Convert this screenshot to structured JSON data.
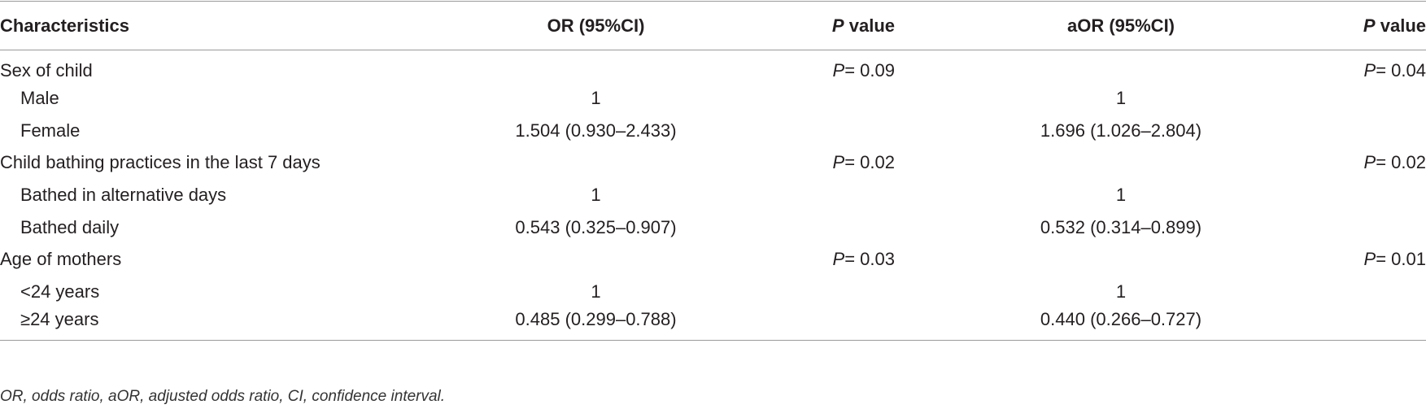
{
  "table": {
    "columns": [
      {
        "label": "Characteristics"
      },
      {
        "label": "OR (95%CI)"
      },
      {
        "symbol": "P",
        "label": "value"
      },
      {
        "label": "aOR (95%CI)"
      },
      {
        "symbol": "P",
        "label": "value"
      }
    ],
    "groups": [
      {
        "label": "Sex of child",
        "p_value": {
          "symbol": "P",
          "text": "= 0.09"
        },
        "adjusted_p_value": {
          "symbol": "P",
          "text": "= 0.04"
        },
        "items": [
          {
            "label": "Male",
            "or": "1",
            "aor": "1"
          },
          {
            "label": "Female",
            "or": "1.504 (0.930–2.433)",
            "aor": "1.696 (1.026–2.804)"
          }
        ]
      },
      {
        "label": "Child bathing practices in the last 7 days",
        "p_value": {
          "symbol": "P",
          "text": "= 0.02"
        },
        "adjusted_p_value": {
          "symbol": "P",
          "text": "= 0.02"
        },
        "items": [
          {
            "label": "Bathed in alternative days",
            "or": "1",
            "aor": "1"
          },
          {
            "label": "Bathed daily",
            "or": "0.543 (0.325–0.907)",
            "aor": "0.532 (0.314–0.899)"
          }
        ]
      },
      {
        "label": "Age of mothers",
        "p_value": {
          "symbol": "P",
          "text": "= 0.03"
        },
        "adjusted_p_value": {
          "symbol": "P",
          "text": "= 0.01"
        },
        "items": [
          {
            "label": "<24 years",
            "or": "1",
            "aor": "1"
          },
          {
            "label": "≥24 years",
            "or": "0.485 (0.299–0.788)",
            "aor": "0.440 (0.266–0.727)"
          }
        ]
      }
    ],
    "footnote": "OR, odds ratio, aOR, adjusted odds ratio, CI, confidence interval."
  }
}
